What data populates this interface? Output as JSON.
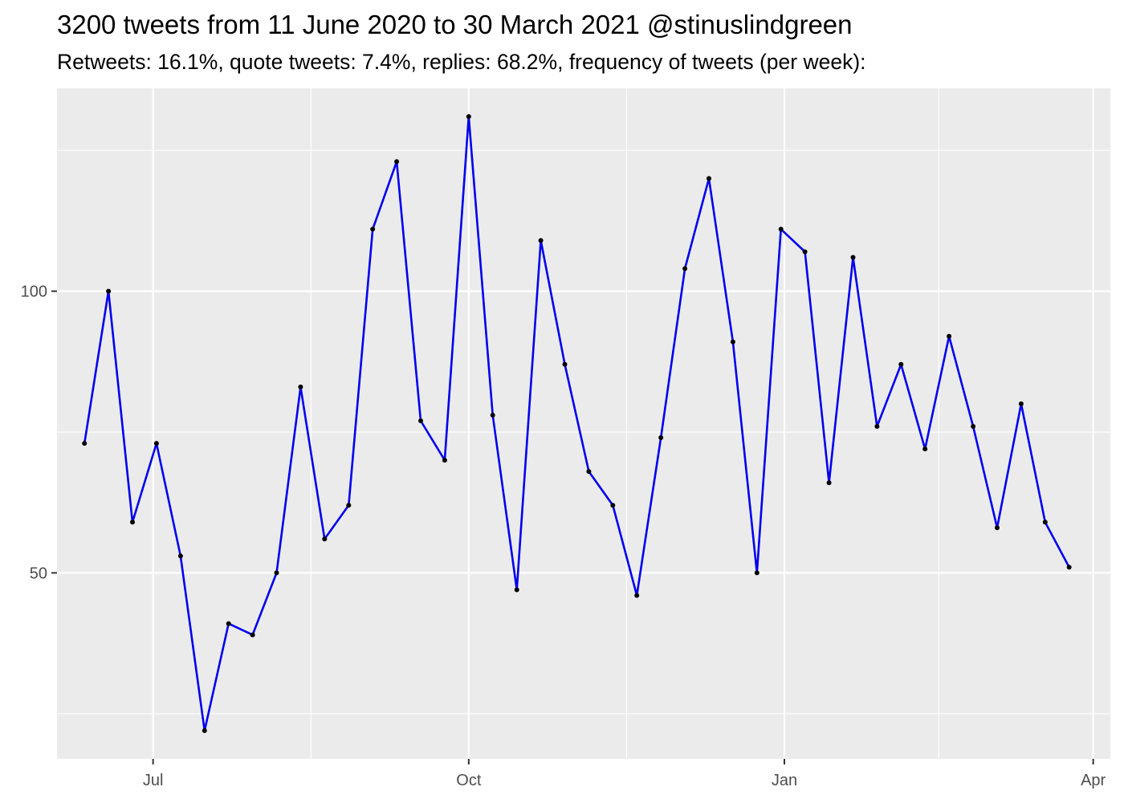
{
  "header": {
    "title": "3200 tweets from 11 June 2020 to 30 March 2021 @stinuslindgreen",
    "subtitle": "Retweets: 16.1%, quote tweets: 7.4%, replies: 68.2%, frequency of tweets (per week):"
  },
  "chart_data": {
    "type": "line",
    "title": "3200 tweets from 11 June 2020 to 30 March 2021 @stinuslindgreen",
    "subtitle": "Retweets: 16.1%, quote tweets: 7.4%, replies: 68.2%, frequency of tweets (per week):",
    "xlabel": "",
    "ylabel": "",
    "xlim": [
      "2020-06-03",
      "2021-04-06"
    ],
    "ylim": [
      17,
      136
    ],
    "x_ticks": [
      {
        "date": "2020-07-01",
        "label": "Jul"
      },
      {
        "date": "2020-10-01",
        "label": "Oct"
      },
      {
        "date": "2021-01-01",
        "label": "Jan"
      },
      {
        "date": "2021-04-01",
        "label": "Apr"
      }
    ],
    "y_ticks": [
      {
        "value": 50,
        "label": "50"
      },
      {
        "value": 100,
        "label": "100"
      }
    ],
    "grid": true,
    "line_color": "#0000ee",
    "point_color": "#000000",
    "panel_background": "#ebebeb",
    "series": [
      {
        "x": [
          "2020-06-11",
          "2020-06-18",
          "2020-06-25",
          "2020-07-02",
          "2020-07-09",
          "2020-07-16",
          "2020-07-23",
          "2020-07-30",
          "2020-08-06",
          "2020-08-13",
          "2020-08-20",
          "2020-08-27",
          "2020-09-03",
          "2020-09-10",
          "2020-09-17",
          "2020-09-24",
          "2020-10-01",
          "2020-10-08",
          "2020-10-15",
          "2020-10-22",
          "2020-10-29",
          "2020-11-05",
          "2020-11-12",
          "2020-11-19",
          "2020-11-26",
          "2020-12-03",
          "2020-12-10",
          "2020-12-17",
          "2020-12-24",
          "2020-12-31",
          "2021-01-07",
          "2021-01-14",
          "2021-01-21",
          "2021-01-28",
          "2021-02-04",
          "2021-02-11",
          "2021-02-18",
          "2021-02-25",
          "2021-03-04",
          "2021-03-11",
          "2021-03-18",
          "2021-03-25"
        ],
        "y": [
          73,
          100,
          59,
          73,
          53,
          22,
          41,
          39,
          50,
          83,
          56,
          62,
          111,
          123,
          77,
          70,
          131,
          78,
          47,
          109,
          87,
          68,
          62,
          46,
          74,
          104,
          120,
          91,
          50,
          111,
          107,
          66,
          106,
          76,
          87,
          72,
          92,
          76,
          58,
          80,
          59,
          51
        ]
      }
    ]
  }
}
